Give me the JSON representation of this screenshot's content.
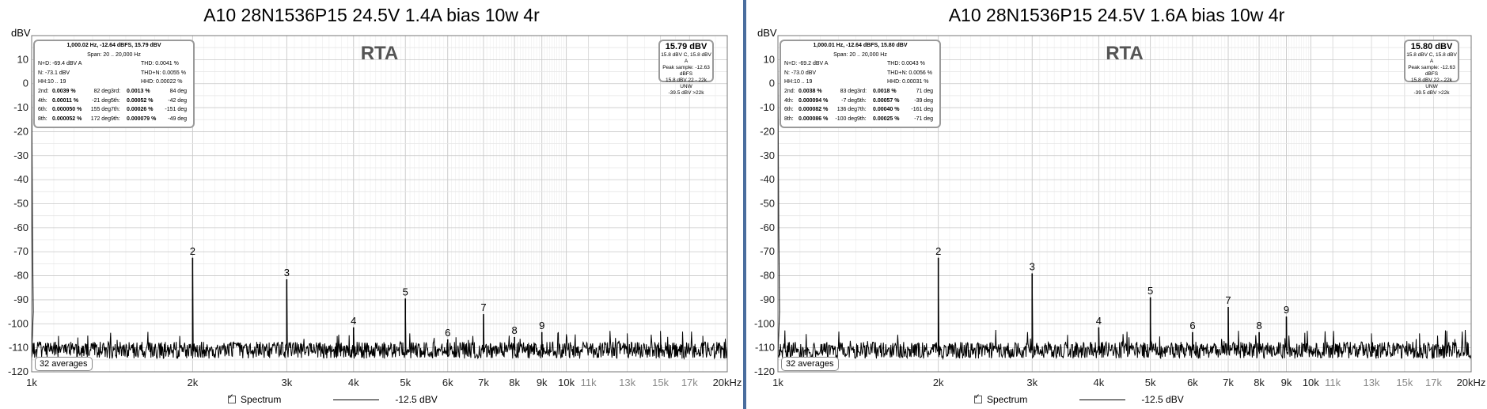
{
  "chart_data": [
    {
      "type": "line",
      "title": "A10 28N1536P15 24.5V 1.4A bias 10w 4r",
      "ylabel": "dBV",
      "rta_label": "RTA",
      "x_scale": "log",
      "xlim": [
        1000,
        20000
      ],
      "ylim": [
        -120,
        20
      ],
      "yticks": [
        10,
        0,
        -10,
        -20,
        -30,
        -40,
        -50,
        -60,
        -70,
        -80,
        -90,
        -100,
        -110,
        -120
      ],
      "xticks": [
        {
          "v": 1000,
          "t": "1k",
          "major": true
        },
        {
          "v": 2000,
          "t": "2k",
          "major": true
        },
        {
          "v": 3000,
          "t": "3k",
          "major": true
        },
        {
          "v": 4000,
          "t": "4k",
          "major": true
        },
        {
          "v": 5000,
          "t": "5k",
          "major": true
        },
        {
          "v": 6000,
          "t": "6k",
          "major": true
        },
        {
          "v": 7000,
          "t": "7k",
          "major": true
        },
        {
          "v": 8000,
          "t": "8k",
          "major": true
        },
        {
          "v": 9000,
          "t": "9k",
          "major": true
        },
        {
          "v": 10000,
          "t": "10k",
          "major": true
        },
        {
          "v": 11000,
          "t": "11k",
          "major": false
        },
        {
          "v": 13000,
          "t": "13k",
          "major": false
        },
        {
          "v": 15000,
          "t": "15k",
          "major": false
        },
        {
          "v": 17000,
          "t": "17k",
          "major": false
        },
        {
          "v": 20000,
          "t": "20kHz",
          "major": true
        }
      ],
      "grid": true,
      "noise_floor": -111,
      "harmonics": [
        {
          "label": "2",
          "freq": 2000,
          "level": -72.5
        },
        {
          "label": "3",
          "freq": 3000,
          "level": -81.5
        },
        {
          "label": "4",
          "freq": 4000,
          "level": -101.5
        },
        {
          "label": "5",
          "freq": 5000,
          "level": -89.5
        },
        {
          "label": "6",
          "freq": 6000,
          "level": -106.5
        },
        {
          "label": "7",
          "freq": 7000,
          "level": -96
        },
        {
          "label": "8",
          "freq": 8000,
          "level": -105.5
        },
        {
          "label": "9",
          "freq": 9000,
          "level": -103.5
        }
      ],
      "spurs": [
        {
          "freq": 13000,
          "level": -104
        },
        {
          "freq": 15000,
          "level": -103
        },
        {
          "freq": 18000,
          "level": -105
        }
      ],
      "stats": {
        "header": "1,000.02 Hz, -12.64 dBFS, 15.79 dBV",
        "span": "Span: 20 .. 20,000 Hz",
        "rows": [
          [
            "N+D: -69.4 dBV A",
            "THD: 0.0041 %"
          ],
          [
            "N: -73.1 dBV",
            "THD+N: 0.0055 %"
          ],
          [
            "HH:10 .. 19",
            "HHD: 0.00022 %"
          ]
        ],
        "harm_rows": [
          [
            "2nd:",
            "0.0039 %",
            "82 deg",
            "3rd:",
            "0.0013 %",
            "84 deg"
          ],
          [
            "4th:",
            "0.00011 %",
            "-21 deg",
            "5th:",
            "0.00052 %",
            "-42 deg"
          ],
          [
            "6th:",
            "0.000050 %",
            "155 deg",
            "7th:",
            "0.00026 %",
            "-151 deg"
          ],
          [
            "8th:",
            "0.000052 %",
            "172 deg",
            "9th:",
            "0.000079 %",
            "-49 deg"
          ]
        ]
      },
      "level_box": {
        "main": "15.79 dBV",
        "lines": [
          "15.8 dBV C, 15.8 dBV A",
          "Peak sample: -12.63 dBFS",
          "15.8 dBV 22 - 22k UNW",
          "-39.5 dBV >22k"
        ]
      },
      "averages": "32 averages",
      "legend": {
        "series": "Spectrum",
        "level": "-12.5 dBV"
      }
    },
    {
      "type": "line",
      "title": "A10 28N1536P15 24.5V 1.6A bias 10w 4r",
      "ylabel": "dBV",
      "rta_label": "RTA",
      "x_scale": "log",
      "xlim": [
        1000,
        20000
      ],
      "ylim": [
        -120,
        20
      ],
      "yticks": [
        10,
        0,
        -10,
        -20,
        -30,
        -40,
        -50,
        -60,
        -70,
        -80,
        -90,
        -100,
        -110,
        -120
      ],
      "xticks": [
        {
          "v": 1000,
          "t": "1k",
          "major": true
        },
        {
          "v": 2000,
          "t": "2k",
          "major": true
        },
        {
          "v": 3000,
          "t": "3k",
          "major": true
        },
        {
          "v": 4000,
          "t": "4k",
          "major": true
        },
        {
          "v": 5000,
          "t": "5k",
          "major": true
        },
        {
          "v": 6000,
          "t": "6k",
          "major": true
        },
        {
          "v": 7000,
          "t": "7k",
          "major": true
        },
        {
          "v": 8000,
          "t": "8k",
          "major": true
        },
        {
          "v": 9000,
          "t": "9k",
          "major": true
        },
        {
          "v": 10000,
          "t": "10k",
          "major": true
        },
        {
          "v": 11000,
          "t": "11k",
          "major": false
        },
        {
          "v": 13000,
          "t": "13k",
          "major": false
        },
        {
          "v": 15000,
          "t": "15k",
          "major": false
        },
        {
          "v": 17000,
          "t": "17k",
          "major": false
        },
        {
          "v": 20000,
          "t": "20kHz",
          "major": true
        }
      ],
      "grid": true,
      "noise_floor": -111,
      "harmonics": [
        {
          "label": "2",
          "freq": 2000,
          "level": -72.5
        },
        {
          "label": "3",
          "freq": 3000,
          "level": -79
        },
        {
          "label": "4",
          "freq": 4000,
          "level": -101.5
        },
        {
          "label": "5",
          "freq": 5000,
          "level": -89
        },
        {
          "label": "6",
          "freq": 6000,
          "level": -103.5
        },
        {
          "label": "7",
          "freq": 7000,
          "level": -93
        },
        {
          "label": "8",
          "freq": 8000,
          "level": -103.5
        },
        {
          "label": "9",
          "freq": 9000,
          "level": -97
        }
      ],
      "spurs": [
        {
          "freq": 13000,
          "level": -104
        },
        {
          "freq": 16000,
          "level": -104
        },
        {
          "freq": 18000,
          "level": -103
        }
      ],
      "stats": {
        "header": "1,000.01 Hz, -12.64 dBFS, 15.80 dBV",
        "span": "Span: 20 .. 20,000 Hz",
        "rows": [
          [
            "N+D: -69.2 dBV A",
            "THD: 0.0043 %"
          ],
          [
            "N: -73.0 dBV",
            "THD+N: 0.0056 %"
          ],
          [
            "HH:10 .. 19",
            "HHD: 0.00031 %"
          ]
        ],
        "harm_rows": [
          [
            "2nd:",
            "0.0038 %",
            "83 deg",
            "3rd:",
            "0.0018 %",
            "71 deg"
          ],
          [
            "4th:",
            "0.000094 %",
            "-7 deg",
            "5th:",
            "0.00057 %",
            "-39 deg"
          ],
          [
            "6th:",
            "0.000082 %",
            "136 deg",
            "7th:",
            "0.00040 %",
            "-161 deg"
          ],
          [
            "8th:",
            "0.000086 %",
            "-100 deg",
            "9th:",
            "0.00025 %",
            "-71 deg"
          ]
        ]
      },
      "level_box": {
        "main": "15.80 dBV",
        "lines": [
          "15.8 dBV C, 15.8 dBV A",
          "Peak sample: -12.63 dBFS",
          "15.8 dBV 22 - 22k UNW",
          "-39.5 dBV >22k"
        ]
      },
      "averages": "32 averages",
      "legend": {
        "series": "Spectrum",
        "level": "-12.5 dBV"
      }
    }
  ]
}
